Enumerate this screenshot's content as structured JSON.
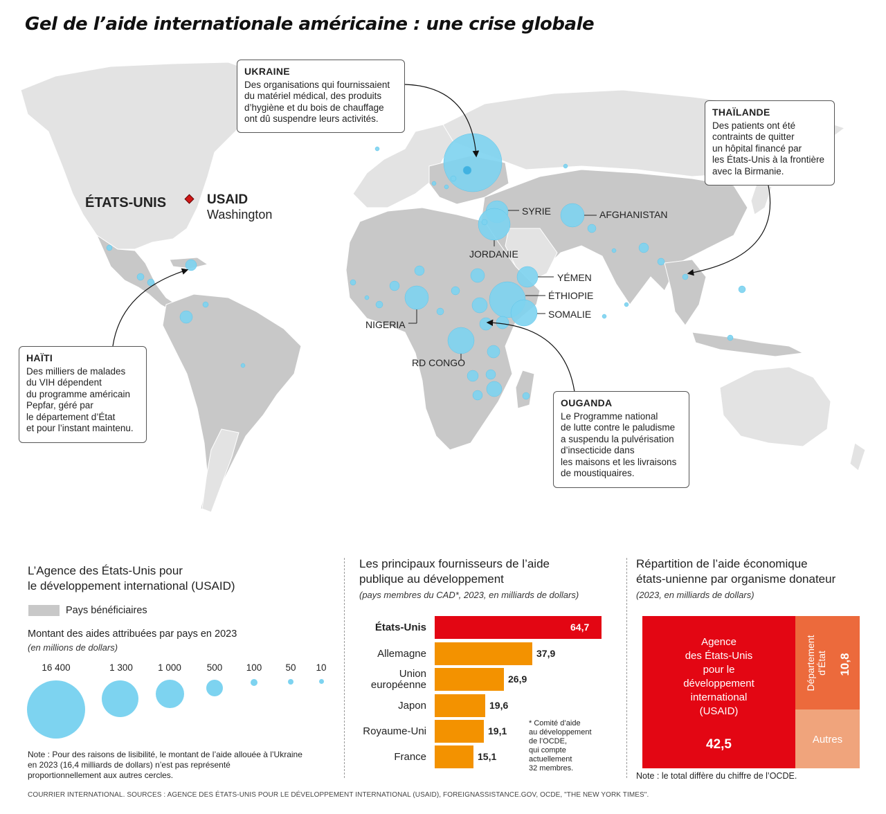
{
  "title": "Gel de l’aide internationale américaine : une crise globale",
  "colors": {
    "beneficiary": "#c8c8c8",
    "land": "#e3e3e3",
    "bubble": "#7dd3f0",
    "usa_bar": "#e30613",
    "other_bar": "#f39200",
    "state_dept": "#ec6a3c",
    "autres": "#f0a47c"
  },
  "map": {
    "usa_label": "ÉTATS-UNIS",
    "usaid_label": "USAID",
    "washington_label": "Washington",
    "country_labels": {
      "syrie": "SYRIE",
      "afghanistan": "AFGHANISTAN",
      "jordanie": "JORDANIE",
      "yemen": "YÉMEN",
      "ethiopie": "ÉTHIOPIE",
      "somalie": "SOMALIE",
      "nigeria": "NIGERIA",
      "rdcongo": "RD CONGO"
    },
    "callouts": {
      "ukraine": {
        "title": "UKRAINE",
        "text": "Des organisations qui fournissaient\ndu matériel médical, des produits\nd’hygiène et du bois de chauffage\nont dû suspendre leurs activités."
      },
      "thailande": {
        "title": "THAÏLANDE",
        "text": "Des patients ont été\ncontraints de quitter\nun hôpital financé par\nles États-Unis à la frontière\navec la Birmanie."
      },
      "haiti": {
        "title": "HAÏTI",
        "text": "Des milliers de malades\ndu VIH dépendent\ndu programme américain\nPepfar, géré par\nle département d’État\net pour l’instant maintenu."
      },
      "ouganda": {
        "title": "OUGANDA",
        "text": "Le Programme national\nde lutte contre le paludisme\na suspendu la pulvérisation\nd’insecticide dans\nles maisons et les livraisons\nde moustiquaires."
      }
    }
  },
  "left_panel": {
    "title": "L’Agence des États-Unis pour\nle développement international (USAID)",
    "swatch_label": "Pays bénéficiaires",
    "amount_title": "Montant des aides attribuées par pays en 2023",
    "amount_sub": "(en millions de dollars)",
    "bubble_legend": [
      "16 400",
      "1 300",
      "1 000",
      "500",
      "100",
      "50",
      "10"
    ],
    "note": "Note : Pour des raisons de lisibilité, le montant de l’aide allouée à l’Ukraine\nen 2023 (16,4 milliards de dollars) n’est pas représenté\nproportionnellement aux autres cercles."
  },
  "middle_panel": {
    "title": "Les principaux fournisseurs de l’aide\npublique au développement",
    "subtitle": "(pays membres du CAD*, 2023, en milliards de dollars)",
    "footnote": "* Comité d’aide\nau développement\nde l’OCDE,\nqui compte\nactuellement\n32 membres."
  },
  "right_panel": {
    "title": "Répartition de l’aide économique\nétats-unienne par organisme donateur",
    "subtitle": "(2023, en milliards de dollars)",
    "usaid_label": "Agence\ndes États-Unis\npour le\ndéveloppement\ninternational\n(USAID)",
    "usaid_value": "42,5",
    "state_label": "Département\nd’État",
    "state_value": "10,8",
    "autres_label": "Autres",
    "note": "Note : le total diffère du chiffre de l’OCDE."
  },
  "chart_data": [
    {
      "type": "bar",
      "title": "Les principaux fournisseurs de l’aide publique au développement",
      "subtitle": "(pays membres du CAD*, 2023, en milliards de dollars)",
      "categories": [
        "États-Unis",
        "Allemagne",
        "Union\neuropéenne",
        "Japon",
        "Royaume-Uni",
        "France"
      ],
      "values": [
        64.7,
        37.9,
        26.9,
        19.6,
        19.1,
        15.1
      ],
      "value_labels": [
        "64,7",
        "37,9",
        "26,9",
        "19,6",
        "19,1",
        "15,1"
      ],
      "orientation": "horizontal",
      "grid": false
    },
    {
      "type": "treemap",
      "title": "Répartition de l’aide économique états-unienne par organisme donateur",
      "subtitle": "(2023, en milliards de dollars)",
      "categories": [
        "USAID",
        "Département d’État",
        "Autres"
      ],
      "values": [
        42.5,
        10.8,
        null
      ],
      "value_labels": [
        "42,5",
        "10,8",
        ""
      ]
    }
  ]
}
